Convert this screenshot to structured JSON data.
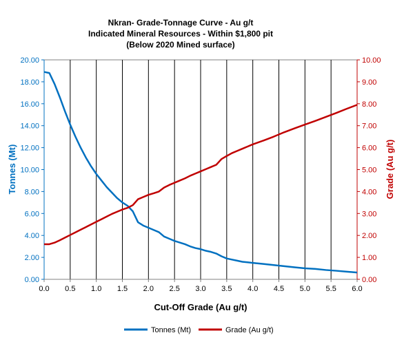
{
  "chart_data": {
    "type": "line",
    "title_lines": [
      "Nkran- Grade-Tonnage Curve - Au g/t",
      "Indicated Mineral Resources - Within $1,800 pit",
      "(Below 2020 Mined surface)"
    ],
    "xlabel": "Cut-Off Grade (Au g/t)",
    "ylabel_left": "Tonnes (Mt)",
    "ylabel_right": "Grade (Au g/t)",
    "xlim": [
      0,
      6
    ],
    "ylim_left": [
      0,
      20
    ],
    "ylim_right": [
      0,
      10
    ],
    "x_ticks": [
      "0.0",
      "0.5",
      "1.0",
      "1.5",
      "2.0",
      "2.5",
      "3.0",
      "3.5",
      "4.0",
      "4.5",
      "5.0",
      "5.5",
      "6.0"
    ],
    "y_ticks_left": [
      "0.00",
      "2.00",
      "4.00",
      "6.00",
      "8.00",
      "10.00",
      "12.00",
      "14.00",
      "16.00",
      "18.00",
      "20.00"
    ],
    "y_ticks_right": [
      "0.00",
      "1.00",
      "2.00",
      "3.00",
      "4.00",
      "5.00",
      "6.00",
      "7.00",
      "8.00",
      "9.00",
      "10.00"
    ],
    "grid": "vertical",
    "legend_position": "bottom",
    "colors": {
      "tonnes": "#0070C0",
      "grade": "#C00000"
    },
    "series": [
      {
        "name": "Tonnes (Mt)",
        "axis": "left",
        "x": [
          0.0,
          0.1,
          0.2,
          0.3,
          0.4,
          0.5,
          0.6,
          0.7,
          0.8,
          0.9,
          1.0,
          1.1,
          1.2,
          1.3,
          1.4,
          1.5,
          1.6,
          1.7,
          1.8,
          1.9,
          2.0,
          2.1,
          2.2,
          2.3,
          2.4,
          2.5,
          2.6,
          2.7,
          2.8,
          2.9,
          3.0,
          3.1,
          3.2,
          3.3,
          3.4,
          3.5,
          3.6,
          3.7,
          3.8,
          3.9,
          4.0,
          4.2,
          4.4,
          4.6,
          4.8,
          5.0,
          5.2,
          5.4,
          5.6,
          5.8,
          6.0
        ],
        "values": [
          18.9,
          18.8,
          17.8,
          16.6,
          15.3,
          14.1,
          13.0,
          12.0,
          11.1,
          10.3,
          9.6,
          9.0,
          8.4,
          7.9,
          7.4,
          7.0,
          6.7,
          6.2,
          5.2,
          4.9,
          4.7,
          4.5,
          4.3,
          3.9,
          3.7,
          3.5,
          3.35,
          3.2,
          3.0,
          2.85,
          2.75,
          2.6,
          2.5,
          2.35,
          2.1,
          1.9,
          1.8,
          1.7,
          1.6,
          1.55,
          1.5,
          1.4,
          1.3,
          1.2,
          1.1,
          1.0,
          0.95,
          0.85,
          0.78,
          0.7,
          0.62
        ]
      },
      {
        "name": "Grade (Au g/t)",
        "axis": "right",
        "x": [
          0.0,
          0.1,
          0.2,
          0.3,
          0.4,
          0.5,
          0.6,
          0.7,
          0.8,
          0.9,
          1.0,
          1.1,
          1.2,
          1.3,
          1.4,
          1.5,
          1.6,
          1.7,
          1.8,
          1.9,
          2.0,
          2.1,
          2.2,
          2.3,
          2.4,
          2.5,
          2.6,
          2.7,
          2.8,
          2.9,
          3.0,
          3.1,
          3.2,
          3.3,
          3.4,
          3.5,
          3.6,
          3.7,
          3.8,
          3.9,
          4.0,
          4.2,
          4.4,
          4.6,
          4.8,
          5.0,
          5.2,
          5.4,
          5.6,
          5.8,
          6.0
        ],
        "values": [
          1.6,
          1.6,
          1.67,
          1.78,
          1.9,
          2.02,
          2.14,
          2.26,
          2.38,
          2.5,
          2.62,
          2.74,
          2.86,
          2.98,
          3.08,
          3.18,
          3.26,
          3.38,
          3.65,
          3.75,
          3.85,
          3.92,
          4.0,
          4.18,
          4.3,
          4.4,
          4.5,
          4.6,
          4.72,
          4.82,
          4.92,
          5.02,
          5.12,
          5.22,
          5.48,
          5.62,
          5.75,
          5.85,
          5.95,
          6.05,
          6.15,
          6.32,
          6.5,
          6.7,
          6.88,
          7.05,
          7.22,
          7.4,
          7.58,
          7.77,
          7.95
        ]
      }
    ]
  }
}
